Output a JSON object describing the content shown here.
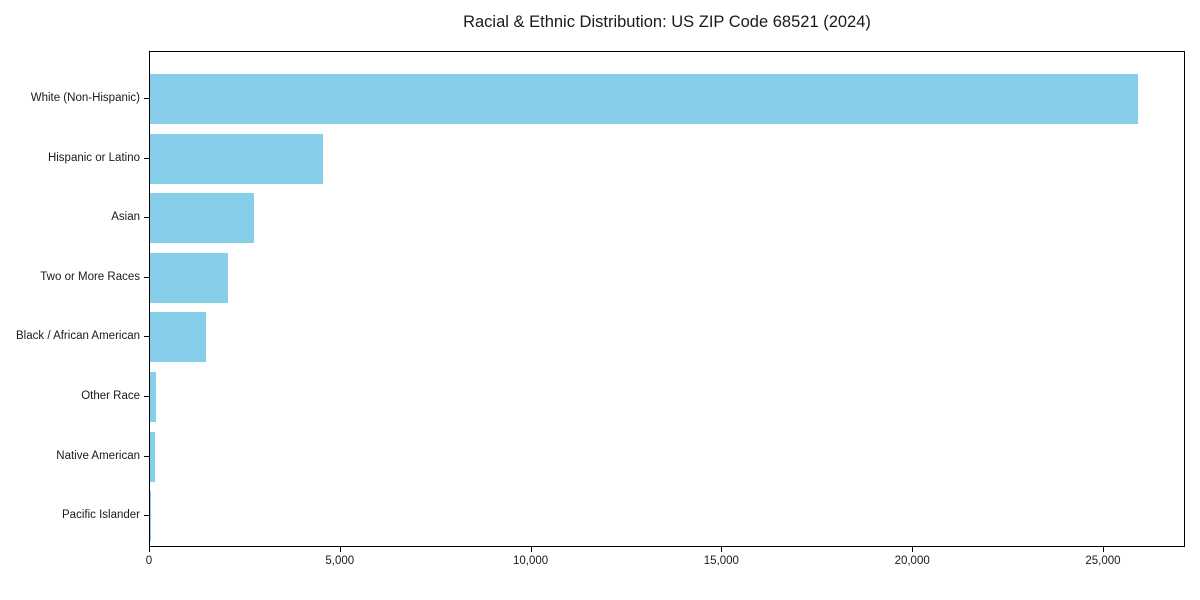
{
  "chart_data": {
    "type": "bar",
    "orientation": "horizontal",
    "title": "Racial & Ethnic Distribution: US ZIP Code 68521 (2024)",
    "categories": [
      "White (Non-Hispanic)",
      "Hispanic or Latino",
      "Asian",
      "Two or More Races",
      "Black / African American",
      "Other Race",
      "Native American",
      "Pacific Islander"
    ],
    "values": [
      25890,
      4540,
      2730,
      2040,
      1470,
      170,
      140,
      20
    ],
    "xlabel": "",
    "ylabel": "",
    "xlim": [
      0,
      27150
    ],
    "xticks": [
      0,
      5000,
      10000,
      15000,
      20000,
      25000
    ],
    "xtick_labels": [
      "0",
      "5,000",
      "10,000",
      "15,000",
      "20,000",
      "25,000"
    ],
    "grid": false,
    "legend": null,
    "bar_color": "#87CEEB",
    "frame_color": "#000000",
    "text_color": "#1a1a1a",
    "background": "#ffffff"
  }
}
